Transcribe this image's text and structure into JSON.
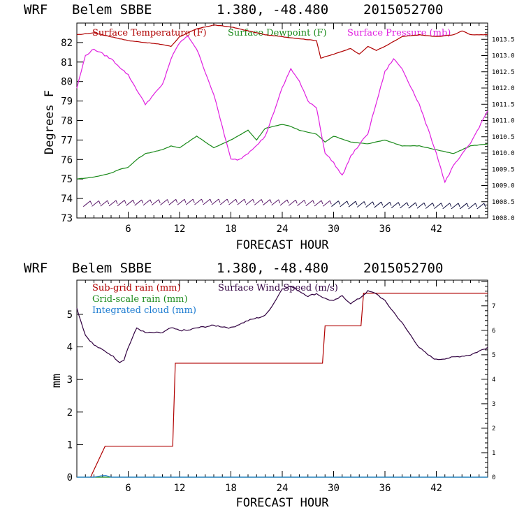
{
  "header": {
    "model": "WRF",
    "station": "Belem SBBE",
    "coords": "1.380, -48.480",
    "run": "2015052700"
  },
  "colors": {
    "temperature": "#b00000",
    "dewpoint": "#1a8a1a",
    "pressure": "#e020e0",
    "subgrid_rain": "#b00000",
    "grid_rain": "#1a8a1a",
    "cloud": "#1a7ad0",
    "wind": "#300040"
  },
  "chart_data": [
    {
      "type": "line",
      "xlabel": "FORECAST HOUR",
      "ylabel": "Degrees F",
      "xlim": [
        0,
        48
      ],
      "x_ticks": [
        6,
        12,
        18,
        24,
        30,
        36,
        42
      ],
      "ylim": [
        73,
        83
      ],
      "y_ticks": [
        73,
        74,
        75,
        76,
        77,
        78,
        79,
        80,
        81,
        82
      ],
      "y2lim": [
        1008.0,
        1014.0
      ],
      "y2_ticks": [
        "1008.0",
        "1008.5",
        "1009.0",
        "1009.5",
        "1010.0",
        "1010.5",
        "1011.0",
        "1011.5",
        "1012.0",
        "1012.5",
        "1013.0",
        "1013.5"
      ],
      "legend": [
        "Surface Temperature (F)",
        "Surface Dewpoint (F)",
        "Surface Pressure (mb)"
      ],
      "series": [
        {
          "name": "Surface Temperature (F)",
          "axis": "left",
          "x": [
            0,
            2,
            4,
            6,
            8,
            10,
            11,
            12,
            14,
            16,
            18,
            20,
            22,
            24,
            26,
            28,
            28.5,
            30,
            32,
            33,
            34,
            35,
            36,
            38,
            40,
            42,
            44,
            45,
            46,
            48
          ],
          "values": [
            82.4,
            82.5,
            82.3,
            82.1,
            82.0,
            81.9,
            81.8,
            82.3,
            82.7,
            82.9,
            82.8,
            82.6,
            82.4,
            82.3,
            82.2,
            82.1,
            81.2,
            81.4,
            81.7,
            81.4,
            81.8,
            81.6,
            81.8,
            82.3,
            82.4,
            82.3,
            82.4,
            82.6,
            82.4,
            82.4
          ]
        },
        {
          "name": "Surface Dewpoint (F)",
          "axis": "left",
          "x": [
            0,
            2,
            4,
            5,
            6,
            7,
            8,
            10,
            11,
            12,
            13,
            14,
            16,
            18,
            20,
            21,
            22,
            24,
            25,
            26,
            28,
            29,
            30,
            32,
            34,
            36,
            38,
            40,
            42,
            44,
            46,
            48
          ],
          "values": [
            75.0,
            75.1,
            75.3,
            75.5,
            75.6,
            76.0,
            76.3,
            76.5,
            76.7,
            76.6,
            76.9,
            77.2,
            76.6,
            77.0,
            77.5,
            77.0,
            77.6,
            77.8,
            77.7,
            77.5,
            77.3,
            76.9,
            77.2,
            76.9,
            76.8,
            77.0,
            76.7,
            76.7,
            76.5,
            76.3,
            76.7,
            76.8
          ]
        },
        {
          "name": "Surface Pressure (mb)",
          "axis": "right",
          "x": [
            0,
            1,
            2,
            4,
            6,
            8,
            10,
            11,
            12,
            13,
            14,
            16,
            18,
            19,
            20,
            22,
            24,
            25,
            26,
            27,
            28,
            29,
            30,
            31,
            32,
            34,
            36,
            37,
            38,
            40,
            42,
            43,
            44,
            46,
            48
          ],
          "values": [
            1012.0,
            1013.0,
            1013.2,
            1012.9,
            1012.4,
            1011.5,
            1012.1,
            1012.9,
            1013.4,
            1013.6,
            1013.2,
            1011.8,
            1009.8,
            1009.8,
            1010.0,
            1010.5,
            1012.0,
            1012.6,
            1012.2,
            1011.6,
            1011.4,
            1010.0,
            1009.7,
            1009.3,
            1009.9,
            1010.6,
            1012.5,
            1012.9,
            1012.6,
            1011.5,
            1010.0,
            1009.1,
            1009.6,
            1010.3,
            1011.3
          ]
        }
      ],
      "wind_barbs": true
    },
    {
      "type": "line",
      "xlabel": "FORECAST HOUR",
      "ylabel": "mm",
      "xlim": [
        0,
        48
      ],
      "x_ticks": [
        6,
        12,
        18,
        24,
        30,
        36,
        42
      ],
      "ylim": [
        0,
        6.05
      ],
      "y_ticks": [
        0,
        1,
        2,
        3,
        4,
        5
      ],
      "y2lim": [
        0,
        8.05
      ],
      "y2_ticks": [
        0,
        1,
        2,
        3,
        4,
        5,
        6,
        7
      ],
      "legend": [
        "Sub-grid rain (mm)",
        "Grid-scale rain (mm)",
        "Integrated cloud (mm)",
        "Surface Wind Speed (m/s)"
      ],
      "series": [
        {
          "name": "Sub-grid rain (mm)",
          "axis": "left",
          "step": true,
          "x": [
            1.6,
            3.3,
            11.2,
            11.5,
            28.7,
            29.0,
            33.2,
            33.5,
            48
          ],
          "values": [
            0,
            0.95,
            0.95,
            3.5,
            3.5,
            4.65,
            4.65,
            5.65,
            5.65
          ]
        },
        {
          "name": "Grid-scale rain (mm)",
          "axis": "left",
          "x": [
            0,
            48
          ],
          "values": [
            0,
            0
          ]
        },
        {
          "name": "Integrated cloud (mm)",
          "axis": "left",
          "x": [
            0,
            2,
            2.8,
            3.4,
            4,
            48
          ],
          "values": [
            0,
            0,
            0.04,
            0.05,
            0,
            0
          ]
        },
        {
          "name": "Surface Wind Speed (m/s)",
          "axis": "right",
          "x": [
            0,
            1,
            2,
            3,
            4,
            5,
            5.5,
            6,
            7,
            8,
            9,
            10,
            11,
            12,
            13,
            14,
            16,
            18,
            20,
            22,
            23,
            24,
            25,
            26,
            27,
            28,
            29,
            30,
            31,
            32,
            33,
            34,
            35,
            36,
            38,
            40,
            41,
            42,
            44,
            46,
            48
          ],
          "values": [
            6.9,
            5.8,
            5.4,
            5.2,
            5.0,
            4.7,
            4.8,
            5.3,
            6.1,
            5.9,
            5.9,
            5.9,
            6.1,
            6.0,
            6.0,
            6.1,
            6.2,
            6.1,
            6.4,
            6.6,
            7.1,
            7.7,
            7.8,
            7.6,
            7.4,
            7.5,
            7.3,
            7.2,
            7.4,
            7.1,
            7.3,
            7.6,
            7.5,
            7.2,
            6.3,
            5.3,
            5.0,
            4.8,
            4.9,
            5.0,
            5.3
          ]
        }
      ]
    }
  ]
}
